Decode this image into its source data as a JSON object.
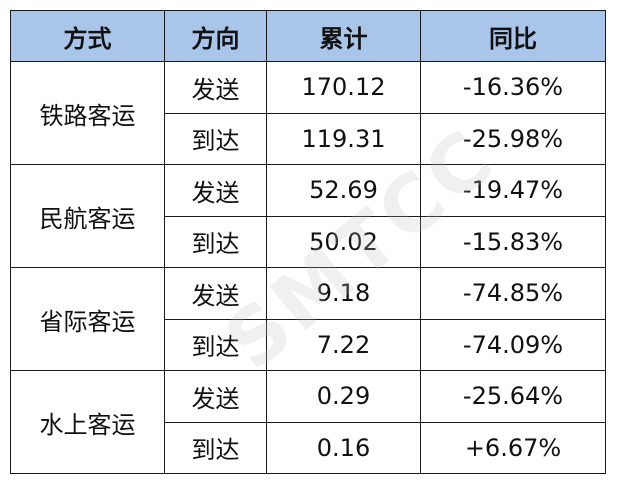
{
  "table": {
    "headers": [
      "方式",
      "方向",
      "累计",
      "同比"
    ],
    "groups": [
      {
        "mode": "铁路客运",
        "rows": [
          {
            "direction": "发送",
            "cumulative": "170.12",
            "yoy": "-16.36%"
          },
          {
            "direction": "到达",
            "cumulative": "119.31",
            "yoy": "-25.98%"
          }
        ]
      },
      {
        "mode": "民航客运",
        "rows": [
          {
            "direction": "发送",
            "cumulative": "52.69",
            "yoy": "-19.47%"
          },
          {
            "direction": "到达",
            "cumulative": "50.02",
            "yoy": "-15.83%"
          }
        ]
      },
      {
        "mode": "省际客运",
        "rows": [
          {
            "direction": "发送",
            "cumulative": "9.18",
            "yoy": "-74.85%"
          },
          {
            "direction": "到达",
            "cumulative": "7.22",
            "yoy": "-74.09%"
          }
        ]
      },
      {
        "mode": "水上客运",
        "rows": [
          {
            "direction": "发送",
            "cumulative": "0.29",
            "yoy": "-25.64%"
          },
          {
            "direction": "到达",
            "cumulative": "0.16",
            "yoy": "+6.67%"
          }
        ]
      }
    ]
  },
  "watermark": "SMTCC",
  "colors": {
    "header_bg": "#a9c6ea",
    "border": "#1a1a1a",
    "text": "#111111"
  }
}
